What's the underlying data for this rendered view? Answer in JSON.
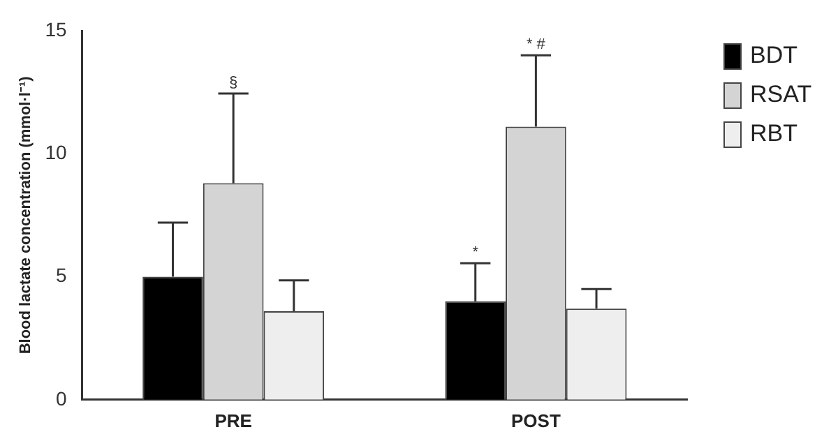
{
  "chart_data": {
    "type": "bar",
    "ylabel": "Blood lactate concentration (mmol·l⁻¹)",
    "categories": [
      "PRE",
      "POST"
    ],
    "series": [
      {
        "name": "BDT",
        "color": "#000000",
        "values": [
          5.0,
          4.0
        ],
        "errors": [
          [
            5.0,
            7.2
          ],
          [
            4.0,
            5.55
          ]
        ]
      },
      {
        "name": "RSAT",
        "color": "#d4d4d4",
        "values": [
          8.8,
          11.1
        ],
        "errors": [
          [
            8.8,
            12.45
          ],
          [
            11.1,
            14.0
          ]
        ]
      },
      {
        "name": "RBT",
        "color": "#eeeeee",
        "values": [
          3.6,
          3.7
        ],
        "errors": [
          [
            3.6,
            4.85
          ],
          [
            3.7,
            4.5
          ]
        ]
      }
    ],
    "ylim": [
      0,
      15
    ],
    "yticks": [
      0,
      5,
      10,
      15
    ],
    "grid": false,
    "legend": "top right",
    "annotations": [
      "§",
      "*",
      "* #"
    ]
  }
}
